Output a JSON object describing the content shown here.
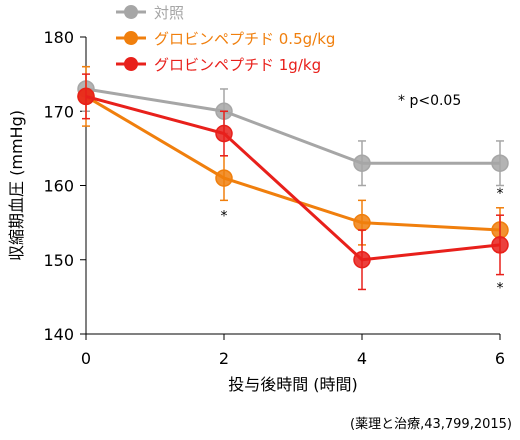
{
  "chart_data": {
    "type": "line",
    "x": [
      0,
      2,
      4,
      6
    ],
    "xlim": [
      0,
      6
    ],
    "ylim": [
      140,
      180
    ],
    "xticks": [
      0,
      2,
      4,
      6
    ],
    "yticks": [
      140,
      150,
      160,
      170,
      180
    ],
    "xlabel": "投与後時間 (時間)",
    "ylabel": "収縮期血圧 (mmHg)",
    "grid": false,
    "legend_position": "top-center",
    "series": [
      {
        "name": "対照",
        "color": "#a6a6a6",
        "values": [
          173,
          170,
          163,
          163
        ],
        "error": [
          3,
          3,
          3,
          3
        ]
      },
      {
        "name": "グロビンペプチド 0.5g/kg",
        "color": "#f07f0d",
        "values": [
          172,
          161,
          155,
          154
        ],
        "error": [
          4,
          3,
          3,
          3
        ],
        "significant": [
          false,
          true,
          false,
          true
        ]
      },
      {
        "name": "グロビンペプチド 1g/kg",
        "color": "#e8201b",
        "values": [
          172,
          167,
          150,
          152
        ],
        "error": [
          3,
          3,
          4,
          4
        ],
        "significant": [
          false,
          false,
          false,
          true
        ]
      }
    ],
    "significance_note": "* p<0.05",
    "significance_marker": "*",
    "source": "(薬理と治療,43,799,2015)"
  }
}
